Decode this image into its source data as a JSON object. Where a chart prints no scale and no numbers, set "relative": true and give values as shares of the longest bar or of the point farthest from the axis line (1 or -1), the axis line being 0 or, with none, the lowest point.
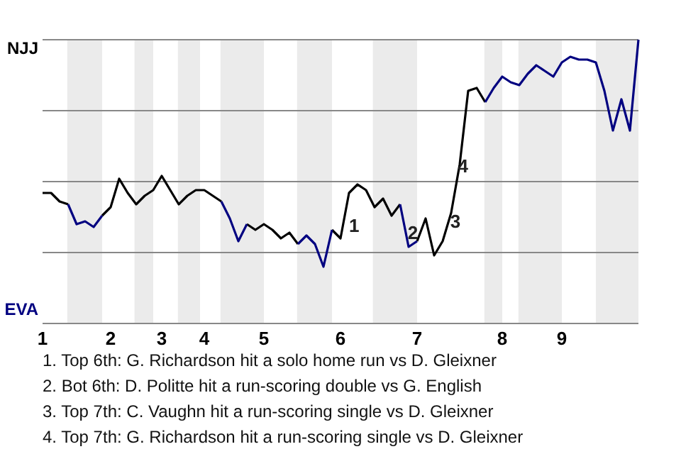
{
  "chart_data": {
    "type": "line",
    "relative": true,
    "categories": [
      "1",
      null,
      null,
      null,
      null,
      null,
      null,
      null,
      "2",
      null,
      null,
      null,
      null,
      null,
      "3",
      null,
      null,
      null,
      null,
      "4",
      null,
      null,
      null,
      null,
      null,
      null,
      "5",
      null,
      null,
      null,
      null,
      null,
      null,
      null,
      null,
      "6",
      null,
      null,
      null,
      null,
      null,
      null,
      null,
      null,
      "7",
      null,
      null,
      null,
      null,
      null,
      null,
      null,
      null,
      null,
      "8",
      null,
      null,
      null,
      null,
      null,
      null,
      "9",
      null,
      null,
      null,
      null,
      null,
      null,
      null,
      null,
      null
    ],
    "grid": "y",
    "marker": "none",
    "line_style": "solid",
    "series": [
      {
        "color": "#000000",
        "values": [
          0.46,
          0.46,
          0.43,
          0.42,
          null,
          null,
          null,
          0.38,
          0.41,
          0.51,
          0.46,
          0.42,
          0.45,
          0.47,
          0.52,
          0.47,
          0.42,
          0.45,
          0.47,
          0.47,
          0.45,
          0.43,
          null,
          null,
          0.35,
          0.33,
          0.35,
          0.33,
          0.3,
          0.32,
          0.28,
          null,
          null,
          null,
          0.33,
          0.3,
          0.46,
          0.49,
          0.47,
          0.41,
          0.44,
          0.38,
          0.42,
          null,
          0.29,
          0.37,
          0.24,
          0.29,
          0.39,
          0.56,
          0.82,
          0.83,
          0.78,
          null,
          null,
          null,
          null,
          null,
          null,
          null,
          null,
          null,
          null,
          null,
          null,
          null,
          null,
          null,
          null,
          null,
          null
        ]
      },
      {
        "color": "#000080",
        "values": [
          null,
          null,
          null,
          0.42,
          0.35,
          0.36,
          0.34,
          0.38,
          null,
          null,
          null,
          null,
          null,
          null,
          null,
          null,
          null,
          null,
          null,
          null,
          null,
          0.43,
          0.37,
          0.29,
          0.35,
          null,
          null,
          null,
          null,
          null,
          0.28,
          0.31,
          0.28,
          0.2,
          0.33,
          null,
          null,
          null,
          null,
          null,
          null,
          null,
          0.42,
          0.27,
          0.29,
          null,
          null,
          null,
          null,
          null,
          null,
          null,
          0.78,
          0.83,
          0.87,
          0.85,
          0.84,
          0.88,
          0.91,
          0.89,
          0.87,
          0.92,
          0.94,
          0.93,
          0.93,
          0.92,
          0.82,
          0.68,
          0.79,
          0.68,
          1.0
        ]
      }
    ],
    "annotations": [
      "NJJ",
      "EVA",
      "1",
      "2",
      "3",
      "4",
      "1. Top 6th: G. Richardson hit a solo home run vs D. Gleixner",
      "2. Bot 6th: D. Politte hit a run-scoring double vs G. English",
      "3. Top 7th: C. Vaughn hit a run-scoring single vs D. Gleixner",
      "4. Top 7th: G. Richardson hit a run-scoring single vs D. Gleixner"
    ]
  }
}
